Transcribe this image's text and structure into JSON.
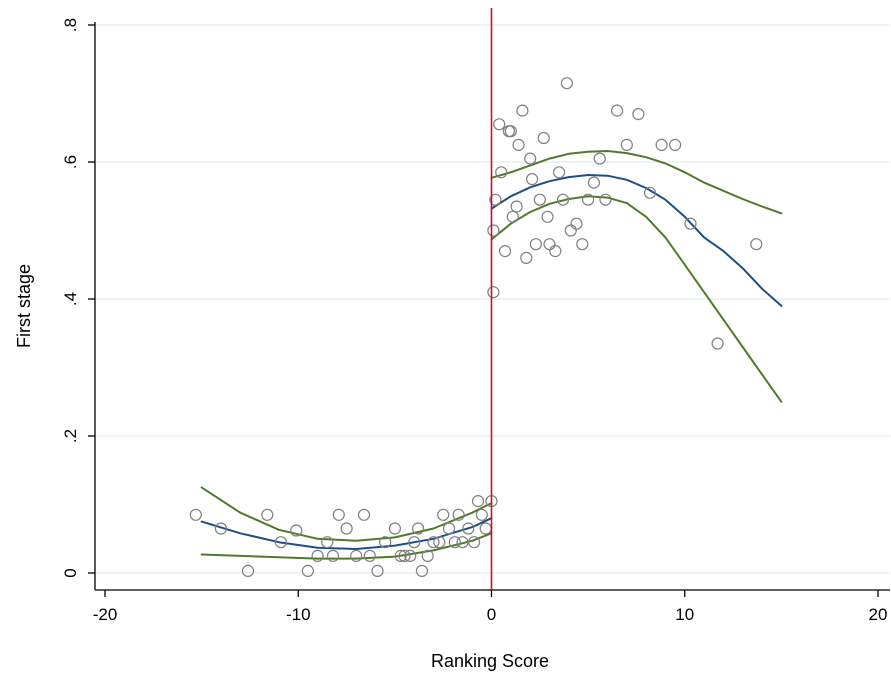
{
  "chart_data": {
    "type": "scatter",
    "title": "",
    "xlabel": "Ranking Score",
    "ylabel": "First stage",
    "xlim": [
      -20,
      20
    ],
    "ylim": [
      0,
      0.8
    ],
    "xticks": [
      -20,
      -10,
      0,
      10,
      20
    ],
    "yticks": [
      0,
      0.2,
      0.4,
      0.6,
      0.8
    ],
    "xtick_labels": [
      "-20",
      "-10",
      "0",
      "10",
      "20"
    ],
    "ytick_labels": [
      "0",
      ".2",
      ".4",
      ".6",
      ".8"
    ],
    "grid": true,
    "cutoff": 0,
    "colors": {
      "points": "#7f7f7f",
      "fit": "#1b4f86",
      "ci": "#4f7a28",
      "cutoff": "#c8102e",
      "grid": "#e4ecef"
    },
    "points": [
      [
        -15.3,
        0.085
      ],
      [
        -14,
        0.065
      ],
      [
        -12.6,
        0.003
      ],
      [
        -11.6,
        0.085
      ],
      [
        -10.9,
        0.045
      ],
      [
        -10.1,
        0.062
      ],
      [
        -9.5,
        0.003
      ],
      [
        -9,
        0.025
      ],
      [
        -8.5,
        0.045
      ],
      [
        -8.2,
        0.025
      ],
      [
        -7.9,
        0.085
      ],
      [
        -7.5,
        0.065
      ],
      [
        -7,
        0.025
      ],
      [
        -6.6,
        0.085
      ],
      [
        -6.3,
        0.025
      ],
      [
        -5.9,
        0.003
      ],
      [
        -5.5,
        0.045
      ],
      [
        -5,
        0.065
      ],
      [
        -4.7,
        0.025
      ],
      [
        -4.5,
        0.025
      ],
      [
        -4.2,
        0.025
      ],
      [
        -4,
        0.045
      ],
      [
        -3.8,
        0.065
      ],
      [
        -3.6,
        0.003
      ],
      [
        -3.3,
        0.025
      ],
      [
        -3,
        0.045
      ],
      [
        -2.7,
        0.045
      ],
      [
        -2.5,
        0.085
      ],
      [
        -2.2,
        0.065
      ],
      [
        -1.9,
        0.045
      ],
      [
        -1.7,
        0.085
      ],
      [
        -1.5,
        0.045
      ],
      [
        -1.2,
        0.065
      ],
      [
        -0.9,
        0.045
      ],
      [
        -0.7,
        0.105
      ],
      [
        -0.5,
        0.085
      ],
      [
        -0.3,
        0.065
      ],
      [
        0,
        0.105
      ],
      [
        0.1,
        0.41
      ],
      [
        0.1,
        0.5
      ],
      [
        0.2,
        0.545
      ],
      [
        0.4,
        0.655
      ],
      [
        0.5,
        0.585
      ],
      [
        0.7,
        0.47
      ],
      [
        0.9,
        0.645
      ],
      [
        1,
        0.645
      ],
      [
        1.1,
        0.52
      ],
      [
        1.3,
        0.535
      ],
      [
        1.4,
        0.625
      ],
      [
        1.6,
        0.675
      ],
      [
        1.8,
        0.46
      ],
      [
        2,
        0.605
      ],
      [
        2.1,
        0.575
      ],
      [
        2.3,
        0.48
      ],
      [
        2.5,
        0.545
      ],
      [
        2.7,
        0.635
      ],
      [
        2.9,
        0.52
      ],
      [
        3,
        0.48
      ],
      [
        3.3,
        0.47
      ],
      [
        3.5,
        0.585
      ],
      [
        3.7,
        0.545
      ],
      [
        3.9,
        0.715
      ],
      [
        4.1,
        0.5
      ],
      [
        4.4,
        0.51
      ],
      [
        4.7,
        0.48
      ],
      [
        5,
        0.545
      ],
      [
        5.3,
        0.57
      ],
      [
        5.6,
        0.605
      ],
      [
        5.9,
        0.545
      ],
      [
        6.5,
        0.675
      ],
      [
        7,
        0.625
      ],
      [
        7.6,
        0.67
      ],
      [
        8.2,
        0.555
      ],
      [
        8.8,
        0.625
      ],
      [
        9.5,
        0.625
      ],
      [
        10.3,
        0.51
      ],
      [
        11.7,
        0.335
      ],
      [
        13.7,
        0.48
      ]
    ],
    "series": [
      {
        "side": "left",
        "role": "fit",
        "x": [
          -15,
          -13,
          -11,
          -9,
          -7,
          -5,
          -3,
          -1,
          0
        ],
        "y": [
          0.075,
          0.058,
          0.045,
          0.037,
          0.035,
          0.04,
          0.05,
          0.067,
          0.08
        ]
      },
      {
        "side": "left",
        "role": "ci-upper",
        "x": [
          -15,
          -13,
          -11,
          -9,
          -7,
          -5,
          -3,
          -1,
          0
        ],
        "y": [
          0.125,
          0.088,
          0.063,
          0.05,
          0.047,
          0.052,
          0.065,
          0.088,
          0.102
        ]
      },
      {
        "side": "left",
        "role": "ci-lower",
        "x": [
          -15,
          -13,
          -11,
          -9,
          -7,
          -5,
          -3,
          -1,
          0
        ],
        "y": [
          0.027,
          0.025,
          0.023,
          0.021,
          0.021,
          0.024,
          0.033,
          0.047,
          0.058
        ]
      },
      {
        "side": "right",
        "role": "fit",
        "x": [
          0,
          1,
          2,
          3,
          4,
          5,
          6,
          7,
          8,
          9,
          10,
          11,
          12,
          13,
          14,
          15
        ],
        "y": [
          0.532,
          0.55,
          0.563,
          0.572,
          0.578,
          0.581,
          0.58,
          0.574,
          0.562,
          0.545,
          0.52,
          0.49,
          0.47,
          0.445,
          0.415,
          0.39
        ]
      },
      {
        "side": "right",
        "role": "ci-upper",
        "x": [
          0,
          1,
          2,
          3,
          4,
          5,
          6,
          7,
          8,
          9,
          10,
          11,
          12,
          13,
          14,
          15
        ],
        "y": [
          0.577,
          0.585,
          0.595,
          0.605,
          0.612,
          0.615,
          0.616,
          0.613,
          0.607,
          0.598,
          0.585,
          0.57,
          0.558,
          0.546,
          0.535,
          0.525
        ]
      },
      {
        "side": "right",
        "role": "ci-lower",
        "x": [
          0,
          1,
          2,
          3,
          4,
          5,
          6,
          7,
          8,
          9,
          10,
          11,
          12,
          13,
          14,
          15
        ],
        "y": [
          0.487,
          0.51,
          0.527,
          0.539,
          0.546,
          0.55,
          0.548,
          0.54,
          0.52,
          0.49,
          0.45,
          0.41,
          0.37,
          0.33,
          0.29,
          0.25
        ]
      }
    ]
  }
}
